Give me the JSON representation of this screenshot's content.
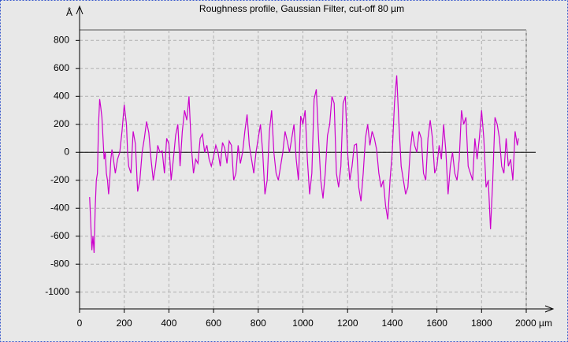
{
  "chart_data": {
    "type": "line",
    "title": "Roughness profile, Gaussian Filter, cut-off 80 µm",
    "y_label": "Å",
    "x": [
      45,
      50,
      55,
      60,
      65,
      70,
      75,
      80,
      85,
      90,
      95,
      100,
      105,
      110,
      115,
      120,
      125,
      130,
      135,
      140,
      145,
      150,
      160,
      170,
      180,
      190,
      200,
      210,
      215,
      220,
      230,
      240,
      250,
      260,
      270,
      280,
      290,
      300,
      310,
      320,
      330,
      340,
      350,
      360,
      370,
      380,
      390,
      400,
      410,
      420,
      430,
      440,
      450,
      460,
      470,
      480,
      490,
      500,
      510,
      520,
      530,
      540,
      550,
      560,
      570,
      580,
      590,
      600,
      610,
      620,
      630,
      640,
      650,
      660,
      670,
      680,
      690,
      700,
      710,
      720,
      730,
      740,
      750,
      760,
      770,
      780,
      790,
      800,
      810,
      820,
      830,
      840,
      850,
      860,
      870,
      880,
      890,
      900,
      910,
      920,
      930,
      940,
      950,
      960,
      970,
      980,
      990,
      1000,
      1010,
      1020,
      1030,
      1040,
      1050,
      1060,
      1070,
      1080,
      1090,
      1100,
      1110,
      1120,
      1130,
      1140,
      1150,
      1160,
      1170,
      1180,
      1190,
      1200,
      1210,
      1220,
      1230,
      1240,
      1250,
      1260,
      1270,
      1280,
      1290,
      1300,
      1310,
      1320,
      1330,
      1340,
      1350,
      1360,
      1370,
      1380,
      1390,
      1400,
      1410,
      1420,
      1430,
      1440,
      1450,
      1460,
      1470,
      1480,
      1490,
      1500,
      1510,
      1520,
      1530,
      1540,
      1550,
      1560,
      1570,
      1580,
      1590,
      1600,
      1610,
      1620,
      1630,
      1640,
      1650,
      1660,
      1670,
      1680,
      1690,
      1700,
      1710,
      1720,
      1730,
      1740,
      1750,
      1760,
      1770,
      1780,
      1790,
      1800,
      1810,
      1820,
      1830,
      1840,
      1850,
      1860,
      1870,
      1880,
      1890,
      1900,
      1910,
      1920,
      1930,
      1940,
      1950,
      1960,
      1965
    ],
    "series": [
      {
        "color": "#cc00cc",
        "values": [
          -320,
          -500,
          -700,
          -600,
          -720,
          -400,
          -200,
          -150,
          200,
          380,
          320,
          250,
          100,
          -50,
          0,
          -150,
          -200,
          -300,
          -200,
          -50,
          20,
          -30,
          -150,
          -50,
          0,
          150,
          340,
          200,
          0,
          -100,
          -150,
          150,
          60,
          -280,
          -200,
          0,
          100,
          220,
          140,
          -50,
          -200,
          -100,
          50,
          0,
          10,
          -150,
          100,
          60,
          -200,
          -50,
          120,
          200,
          -100,
          150,
          300,
          230,
          400,
          50,
          -150,
          -50,
          -80,
          100,
          130,
          0,
          50,
          -50,
          -100,
          -30,
          50,
          0,
          -100,
          70,
          30,
          -80,
          80,
          50,
          -200,
          -150,
          50,
          -80,
          0,
          150,
          270,
          50,
          -50,
          -150,
          0,
          100,
          200,
          0,
          -300,
          -200,
          150,
          300,
          0,
          -150,
          -200,
          -100,
          0,
          150,
          80,
          0,
          100,
          200,
          -50,
          -200,
          260,
          200,
          300,
          -50,
          -300,
          -150,
          380,
          450,
          100,
          -200,
          -330,
          -150,
          120,
          200,
          400,
          350,
          -150,
          -250,
          -100,
          350,
          400,
          0,
          -200,
          -100,
          50,
          60,
          -250,
          -350,
          -150,
          100,
          200,
          50,
          150,
          100,
          20,
          -150,
          -250,
          -200,
          -380,
          -480,
          -200,
          0,
          350,
          550,
          200,
          -100,
          -200,
          -300,
          -250,
          0,
          150,
          50,
          0,
          150,
          100,
          -150,
          -200,
          100,
          230,
          100,
          -150,
          -100,
          50,
          -50,
          200,
          10,
          -300,
          -100,
          0,
          -150,
          -200,
          -50,
          300,
          200,
          250,
          -100,
          -150,
          -200,
          100,
          -50,
          100,
          300,
          100,
          -250,
          -200,
          -550,
          -200,
          250,
          200,
          100,
          -100,
          -150,
          100,
          -100,
          -50,
          -200,
          150,
          50,
          100
        ]
      }
    ],
    "xlim": [
      0,
      2000
    ],
    "xticks": [
      0,
      200,
      400,
      600,
      800,
      1000,
      1200,
      1400,
      1600,
      1800,
      {
        "value": 2000,
        "label": "2000 µm"
      }
    ],
    "ylim": [
      -1120,
      875
    ],
    "yticks": [
      800,
      600,
      400,
      200,
      0,
      -200,
      -400,
      -600,
      -800,
      -1000
    ],
    "grid": true
  }
}
